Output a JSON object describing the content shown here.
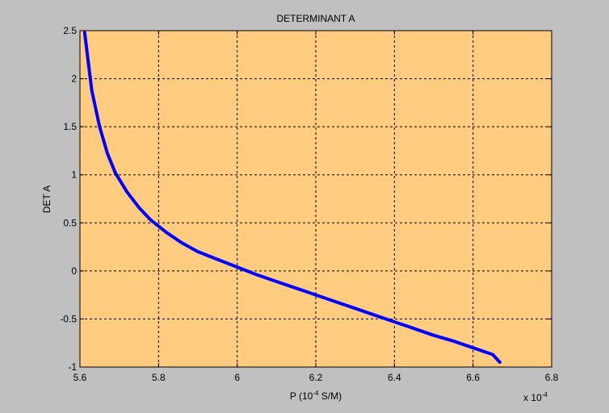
{
  "figure": {
    "background_color": "#c0c0c0",
    "axes_background_color": "#ffcc80",
    "line_color": "#0000ff"
  },
  "chart_data": {
    "type": "line",
    "title": "DETERMINANT A",
    "xlabel": {
      "prefix": "P (10",
      "superscript": "-4",
      "suffix": " S/M)"
    },
    "ylabel": "DET A",
    "x_exponent_note": {
      "prefix": "x 10",
      "superscript": "-4"
    },
    "xlim": [
      5.6,
      6.8
    ],
    "ylim": [
      -1,
      2.5
    ],
    "x_ticks": [
      5.6,
      5.8,
      6.0,
      6.2,
      6.4,
      6.6,
      6.8
    ],
    "x_tick_labels": [
      "5.6",
      "5.8",
      "6",
      "6.2",
      "6.4",
      "6.6",
      "6.8"
    ],
    "y_ticks": [
      2.5,
      2,
      1.5,
      1,
      0.5,
      0,
      -0.5,
      -1
    ],
    "y_tick_labels": [
      "2.5",
      "2",
      "1.5",
      "1",
      "0.5",
      "0",
      "-0.5",
      "-1"
    ],
    "grid": true,
    "grid_style": "dashed",
    "series": [
      {
        "color": "#0000ff",
        "x": [
          5.612,
          5.63,
          5.65,
          5.67,
          5.69,
          5.72,
          5.75,
          5.78,
          5.82,
          5.86,
          5.9,
          5.95,
          6.0,
          6.05,
          6.1,
          6.15,
          6.2,
          6.25,
          6.3,
          6.35,
          6.4,
          6.45,
          6.5,
          6.55,
          6.6,
          6.65,
          6.668
        ],
        "y": [
          2.48,
          1.88,
          1.5,
          1.22,
          1.02,
          0.82,
          0.66,
          0.53,
          0.4,
          0.29,
          0.2,
          0.12,
          0.04,
          -0.04,
          -0.11,
          -0.18,
          -0.25,
          -0.32,
          -0.39,
          -0.46,
          -0.53,
          -0.6,
          -0.67,
          -0.73,
          -0.8,
          -0.87,
          -0.95
        ]
      }
    ]
  }
}
